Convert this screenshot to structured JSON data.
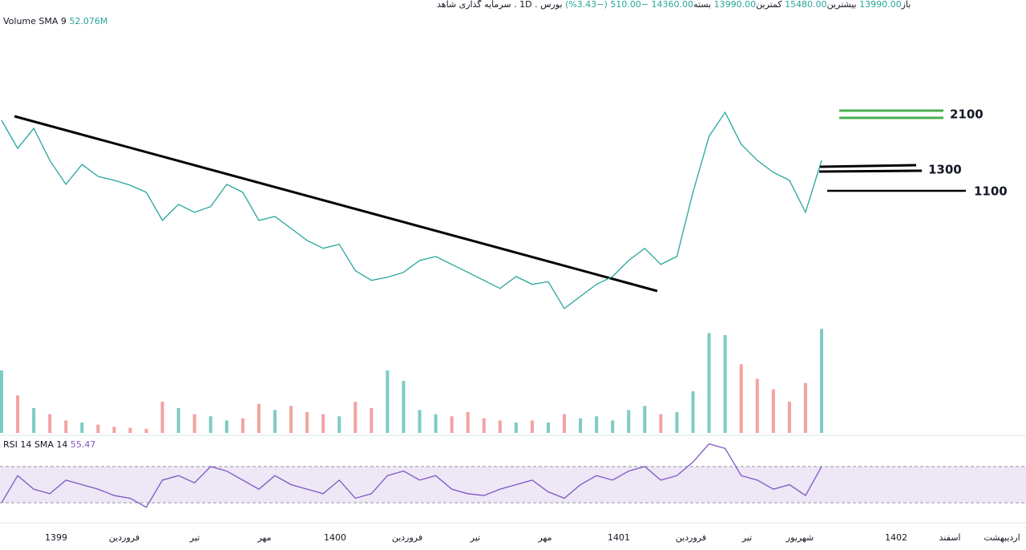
{
  "header": {
    "open_label": "باز",
    "open": "13990.00",
    "high_label": "بیشترین",
    "high": "15480.00",
    "low_label": "کمترین",
    "low": "13990.00",
    "close_label": "بسته",
    "close": "14360.00",
    "change": "−510.00",
    "change_pct": "(−3.43%)",
    "symbol": "بورس . 1D . سرمایه گذاری شاهد"
  },
  "volume_legend": {
    "name": "Volume SMA 9",
    "value": "52.076M"
  },
  "rsi_legend": {
    "name": "RSI 14 SMA 14",
    "value": "55.47"
  },
  "levels": [
    "2100",
    "1300",
    "1100"
  ],
  "x_labels": [
    "1399",
    "فروردین",
    "تیر",
    "مهر",
    "1400",
    "فروردین",
    "تیر",
    "مهر",
    "1401",
    "فروردین",
    "تیر",
    "شهریور",
    "1402",
    "اسفند",
    "اردیبهشت"
  ],
  "chart_data": [
    {
      "type": "line",
      "name": "price",
      "log_scale": true,
      "ylim": [
        380,
        2400
      ],
      "color": "#26a69a",
      "values": [
        1985,
        1568,
        1856,
        1417,
        1158,
        1370,
        1238,
        1198,
        1150,
        1083,
        855,
        978,
        915,
        960,
        1158,
        1083,
        855,
        884,
        799,
        722,
        676,
        699,
        560,
        516,
        530,
        552,
        610,
        631,
        590,
        552,
        516,
        482,
        533,
        499,
        510,
        407,
        451,
        499,
        533,
        610,
        676,
        590,
        631,
        1083,
        1735,
        2123,
        1622,
        1417,
        1281,
        1198,
        915,
        1417
      ]
    },
    {
      "type": "bar",
      "name": "volume",
      "ylim": [
        0,
        520
      ],
      "up_color": "#7fcbc4",
      "down_color": "#f2a3a1",
      "values": [
        300,
        180,
        120,
        90,
        60,
        50,
        40,
        30,
        25,
        20,
        150,
        120,
        90,
        80,
        60,
        70,
        140,
        110,
        130,
        100,
        90,
        80,
        150,
        120,
        300,
        250,
        110,
        90,
        80,
        100,
        70,
        60,
        50,
        60,
        50,
        90,
        70,
        80,
        60,
        110,
        130,
        90,
        100,
        200,
        480,
        470,
        330,
        260,
        210,
        150,
        240,
        500
      ]
    },
    {
      "type": "line",
      "name": "rsi",
      "ylim": [
        0,
        100
      ],
      "band": [
        30,
        70
      ],
      "color": "#7e57c2",
      "values": [
        30,
        60,
        45,
        40,
        55,
        50,
        45,
        38,
        35,
        25,
        55,
        60,
        52,
        70,
        65,
        55,
        45,
        60,
        50,
        45,
        40,
        55,
        35,
        40,
        60,
        65,
        55,
        60,
        45,
        40,
        38,
        45,
        50,
        55,
        42,
        35,
        50,
        60,
        55,
        65,
        70,
        55,
        60,
        75,
        95,
        90,
        60,
        55,
        45,
        50,
        38,
        70
      ]
    }
  ]
}
